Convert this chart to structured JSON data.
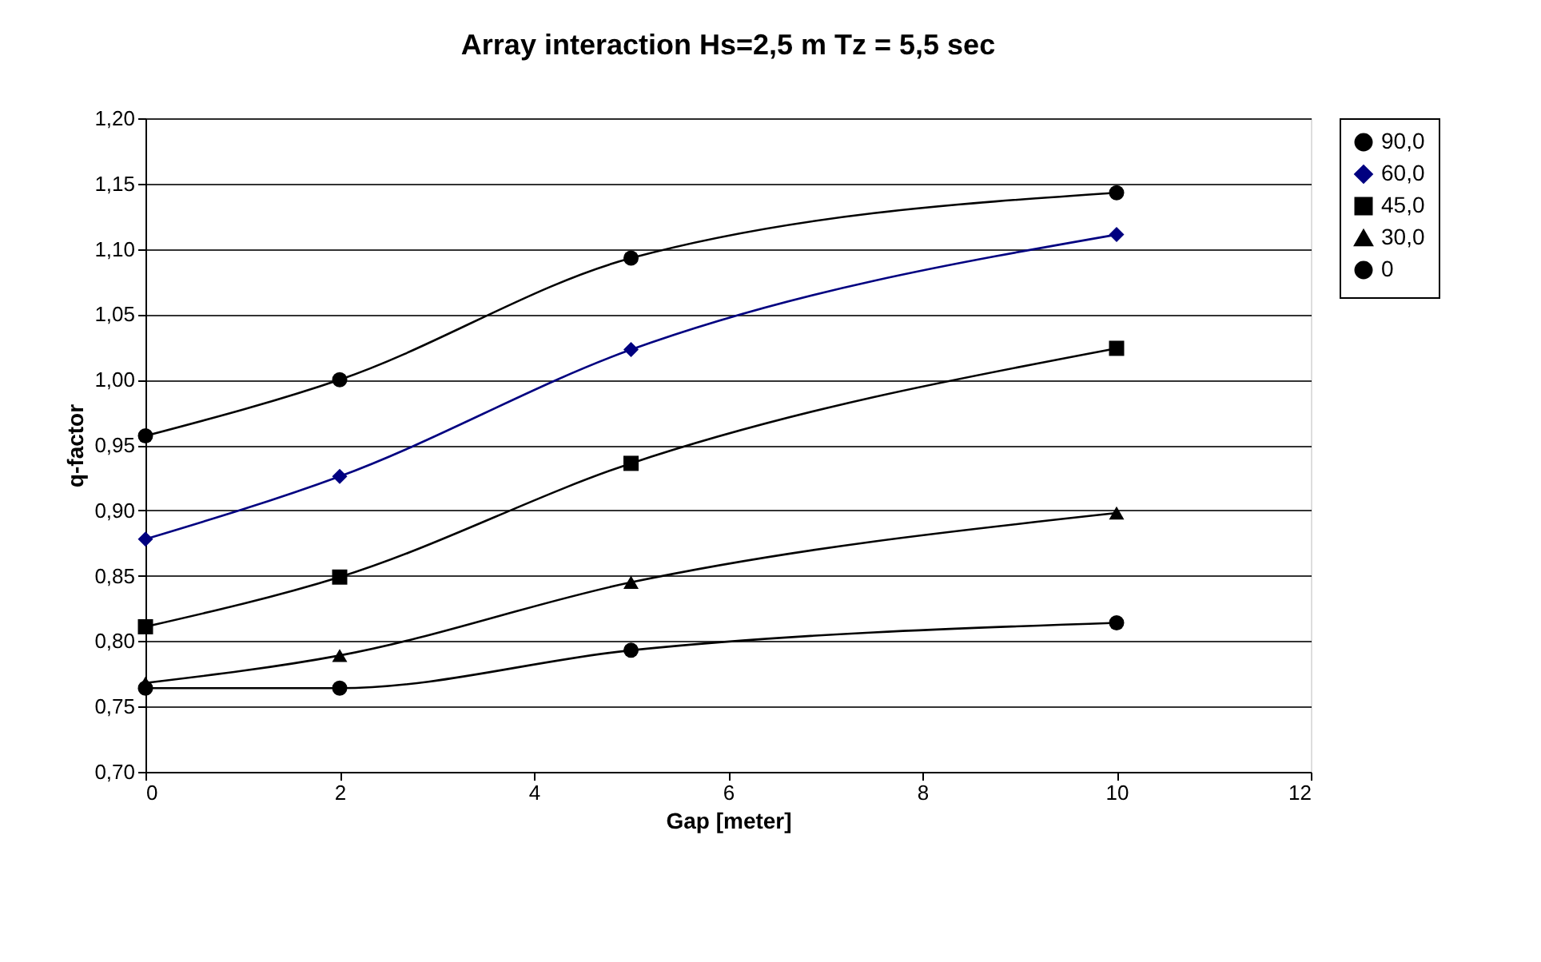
{
  "chart_data": {
    "type": "line",
    "title": "Array interaction Hs=2,5 m Tz = 5,5 sec",
    "xlabel": "Gap [meter]",
    "ylabel": "q-factor",
    "x": [
      0,
      2,
      5,
      10
    ],
    "series": [
      {
        "name": "90,0",
        "color": "#000000",
        "marker": "circle",
        "values": [
          0.957,
          1.0,
          1.093,
          1.143
        ]
      },
      {
        "name": "60,0",
        "color": "#000080",
        "marker": "diamond",
        "values": [
          0.878,
          0.926,
          1.023,
          1.111
        ]
      },
      {
        "name": "45,0",
        "color": "#000000",
        "marker": "square",
        "values": [
          0.811,
          0.849,
          0.936,
          1.024
        ]
      },
      {
        "name": "30,0",
        "color": "#000000",
        "marker": "triangle",
        "values": [
          0.768,
          0.789,
          0.845,
          0.898
        ]
      },
      {
        "name": "0",
        "color": "#000000",
        "marker": "circle",
        "values": [
          0.764,
          0.764,
          0.793,
          0.814
        ]
      }
    ],
    "xlim": [
      0,
      12
    ],
    "xticks": [
      0,
      2,
      4,
      6,
      8,
      10,
      12
    ],
    "ylim": [
      0.7,
      1.2
    ],
    "yticks": [
      {
        "value": 0.7,
        "label": "0,70"
      },
      {
        "value": 0.75,
        "label": "0,75"
      },
      {
        "value": 0.8,
        "label": "0,80"
      },
      {
        "value": 0.85,
        "label": "0,85"
      },
      {
        "value": 0.9,
        "label": "0,90"
      },
      {
        "value": 0.95,
        "label": "0,95"
      },
      {
        "value": 1.0,
        "label": "1,00"
      },
      {
        "value": 1.05,
        "label": "1,05"
      },
      {
        "value": 1.1,
        "label": "1,10"
      },
      {
        "value": 1.15,
        "label": "1,15"
      },
      {
        "value": 1.2,
        "label": "1,20"
      }
    ],
    "grid": "y",
    "legend": "right",
    "line_style": "solid"
  }
}
